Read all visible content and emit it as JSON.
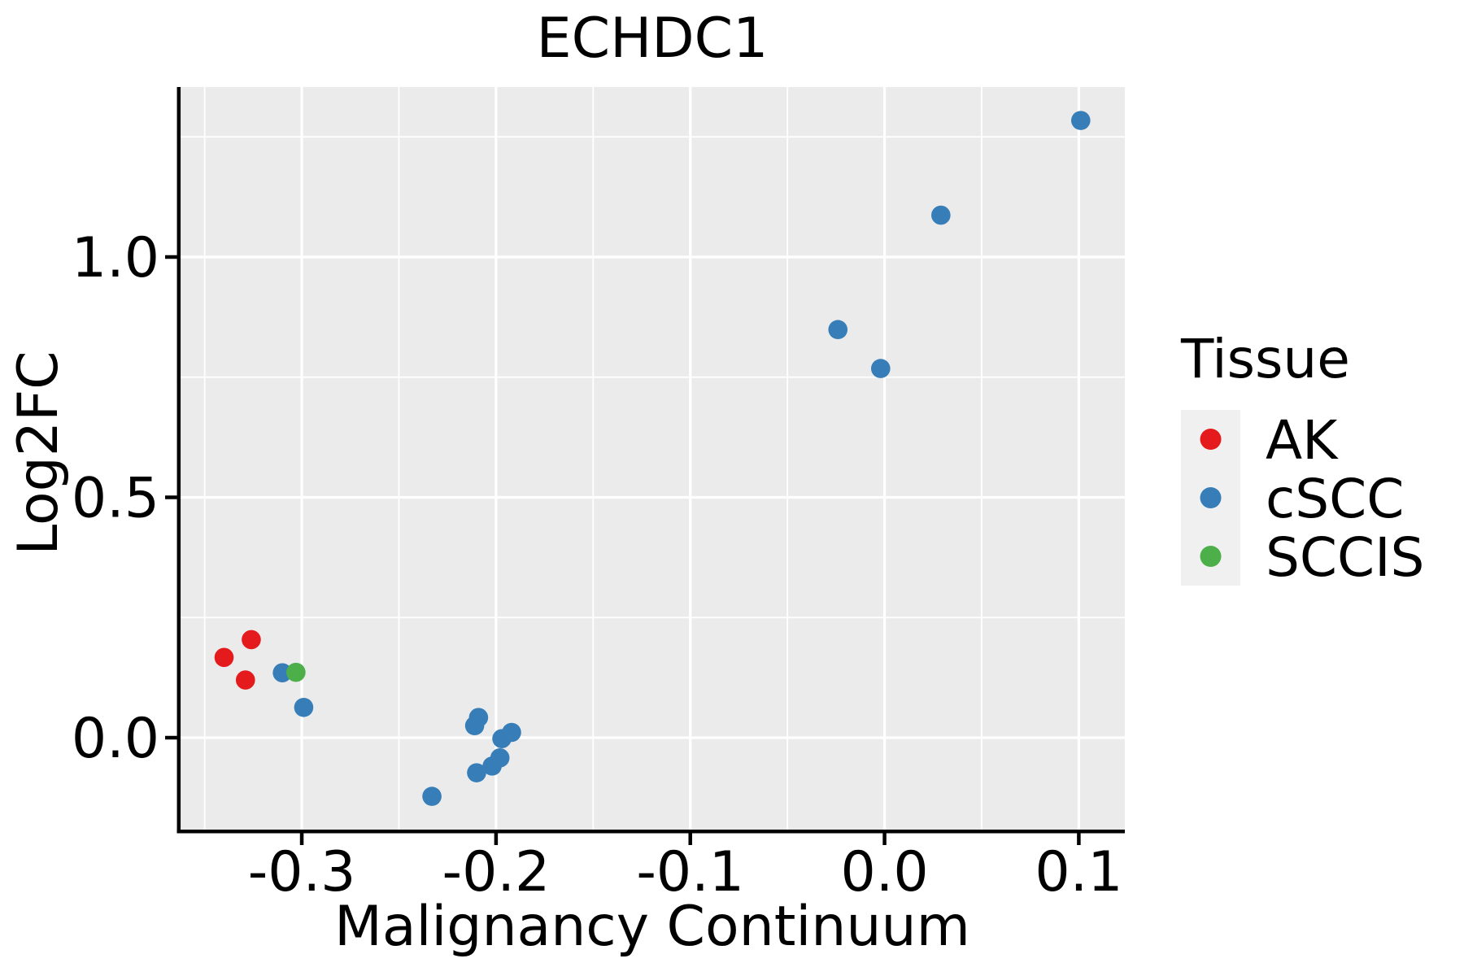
{
  "chart_data": {
    "type": "scatter",
    "title": "ECHDC1",
    "xlabel": "Malignancy Continuum",
    "ylabel": "Log2FC",
    "xlim": [
      -0.3624,
      0.1237
    ],
    "ylim": [
      -0.1912,
      1.3536
    ],
    "x_major_ticks": [
      -0.3,
      -0.2,
      -0.1,
      0.0,
      0.1
    ],
    "x_tick_labels": [
      "-0.3",
      "-0.2",
      "-0.1",
      "0.0",
      "0.1"
    ],
    "x_minor_ticks": [
      -0.35,
      -0.25,
      -0.15,
      -0.05,
      0.05
    ],
    "y_major_ticks": [
      0.0,
      0.5,
      1.0
    ],
    "y_tick_labels": [
      "0.0",
      "0.5",
      "1.0"
    ],
    "y_minor_ticks": [
      0.25,
      0.75,
      1.25
    ],
    "grid": true,
    "legend_position": "right",
    "colors": {
      "panel_bg": "#EBEBEB",
      "grid": "#FFFFFF",
      "axis": "#000000",
      "text": "#000000",
      "legend_key_bg": "#F0F0F0"
    },
    "legend": {
      "title": "Tissue",
      "entries": [
        {
          "label": "AK",
          "color": "#E41A1C"
        },
        {
          "label": "cSCC",
          "color": "#377EB8"
        },
        {
          "label": "SCCIS",
          "color": "#4DAF4A"
        }
      ]
    },
    "series": [
      {
        "name": "AK",
        "color": "#E41A1C",
        "points": [
          [
            -0.34,
            0.167
          ],
          [
            -0.326,
            0.204
          ],
          [
            -0.329,
            0.12
          ]
        ]
      },
      {
        "name": "cSCC",
        "color": "#377EB8",
        "points": [
          [
            -0.31,
            0.135
          ],
          [
            -0.299,
            0.063
          ],
          [
            -0.233,
            -0.122
          ],
          [
            -0.211,
            0.025
          ],
          [
            -0.209,
            0.042
          ],
          [
            -0.21,
            -0.073
          ],
          [
            -0.202,
            -0.059
          ],
          [
            -0.198,
            -0.042
          ],
          [
            -0.197,
            -0.002
          ],
          [
            -0.192,
            0.011
          ],
          [
            -0.024,
            0.849
          ],
          [
            -0.002,
            0.768
          ],
          [
            0.029,
            1.087
          ],
          [
            0.101,
            1.284
          ]
        ]
      },
      {
        "name": "SCCIS",
        "color": "#4DAF4A",
        "points": [
          [
            -0.303,
            0.136
          ]
        ]
      }
    ]
  }
}
